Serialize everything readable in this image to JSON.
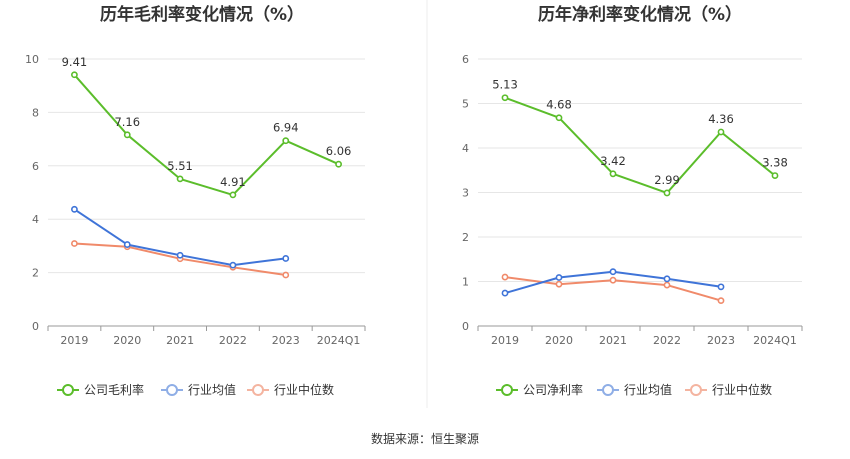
{
  "colors": {
    "company": "#5bbd2b",
    "industry_avg": "#3f74d8",
    "industry_median": "#f08a6a",
    "industry_avg_legend": "#8faee6",
    "industry_median_legend": "#f4b4a0",
    "grid": "#e6e6e6",
    "axis": "#999999",
    "divider": "#eeeeee"
  },
  "footer": {
    "source": "数据来源：恒生聚源"
  },
  "chart_data": [
    {
      "type": "line",
      "title": "历年毛利率变化情况（%）",
      "categories": [
        "2019",
        "2020",
        "2021",
        "2022",
        "2023",
        "2024Q1"
      ],
      "ylim": [
        0,
        10
      ],
      "yticks": [
        0,
        2,
        4,
        6,
        8,
        10
      ],
      "grid": true,
      "legend_position": "bottom",
      "series": [
        {
          "key": "company",
          "name": "公司毛利率",
          "values": [
            9.41,
            7.16,
            5.51,
            4.91,
            6.94,
            6.06
          ],
          "show_labels": true
        },
        {
          "key": "industry_avg",
          "name": "行业均值",
          "values": [
            4.37,
            3.05,
            2.65,
            2.28,
            2.53,
            null
          ],
          "show_labels": false
        },
        {
          "key": "industry_median",
          "name": "行业中位数",
          "values": [
            3.09,
            2.97,
            2.52,
            2.2,
            1.91,
            null
          ],
          "show_labels": false
        }
      ]
    },
    {
      "type": "line",
      "title": "历年净利率变化情况（%）",
      "categories": [
        "2019",
        "2020",
        "2021",
        "2022",
        "2023",
        "2024Q1"
      ],
      "ylim": [
        0,
        6
      ],
      "yticks": [
        0,
        1,
        2,
        3,
        4,
        5,
        6
      ],
      "grid": true,
      "legend_position": "bottom",
      "series": [
        {
          "key": "company",
          "name": "公司净利率",
          "values": [
            5.13,
            4.68,
            3.42,
            2.99,
            4.36,
            3.38
          ],
          "show_labels": true
        },
        {
          "key": "industry_avg",
          "name": "行业均值",
          "values": [
            0.74,
            1.09,
            1.22,
            1.06,
            0.88,
            null
          ],
          "show_labels": false
        },
        {
          "key": "industry_median",
          "name": "行业中位数",
          "values": [
            1.1,
            0.94,
            1.03,
            0.92,
            0.57,
            null
          ],
          "show_labels": false
        }
      ]
    }
  ]
}
